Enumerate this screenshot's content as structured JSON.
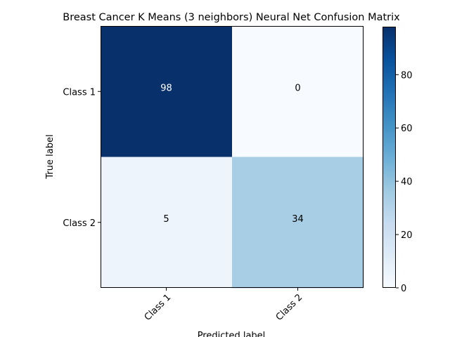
{
  "chart_data": {
    "type": "heatmap",
    "title": "Breast Cancer K Means (3 neighbors) Neural Net Confusion Matrix",
    "xlabel": "Predicted label",
    "ylabel": "True label",
    "x_categories": [
      "Class 1",
      "Class 2"
    ],
    "y_categories": [
      "Class 1",
      "Class 2"
    ],
    "matrix": [
      [
        98,
        0
      ],
      [
        5,
        34
      ]
    ],
    "colormap": "Blues",
    "colorbar": {
      "min": 0,
      "max": 98,
      "ticks": [
        0,
        20,
        40,
        60,
        80
      ]
    },
    "grid": false
  }
}
